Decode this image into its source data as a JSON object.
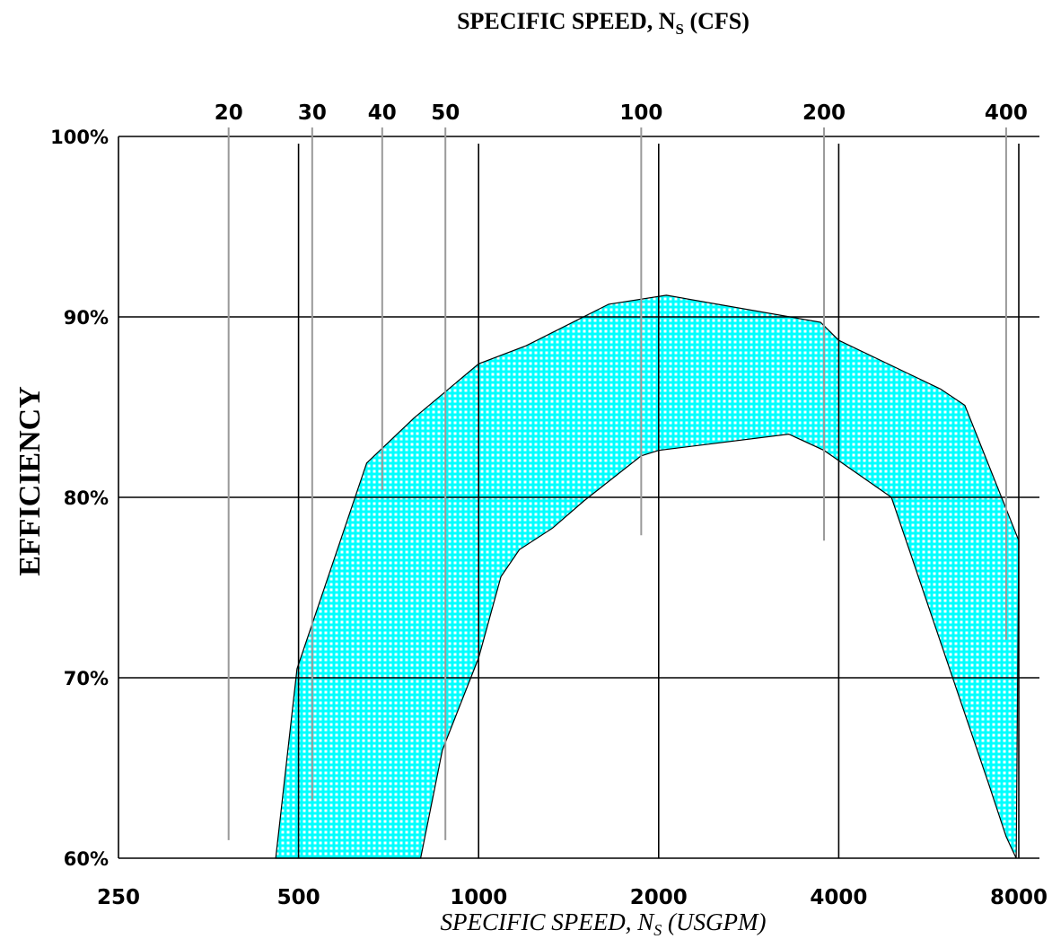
{
  "chart_data": {
    "type": "area",
    "title": "SPECIFIC SPEED, N_S (CFS)",
    "title_main": "SPECIFIC SPEED, N",
    "title_sub": "S",
    "title_suffix": " (CFS)",
    "xlabel": "SPECIFIC SPEED, N_S (USGPM)",
    "xlabel_main": "SPECIFIC SPEED, N",
    "xlabel_sub": "S",
    "xlabel_suffix": " (USGPM)",
    "ylabel": "EFFICIENCY",
    "x_scale": "log2",
    "xlim": [
      250,
      8000
    ],
    "ylim": [
      60,
      100
    ],
    "x_ticks": [
      {
        "value": 250,
        "label": "250"
      },
      {
        "value": 500,
        "label": "500"
      },
      {
        "value": 1000,
        "label": "1000"
      },
      {
        "value": 2000,
        "label": "2000"
      },
      {
        "value": 4000,
        "label": "4000"
      },
      {
        "value": 8000,
        "label": "8000"
      }
    ],
    "y_ticks": [
      {
        "value": 60,
        "label": "60%"
      },
      {
        "value": 70,
        "label": "70%"
      },
      {
        "value": 80,
        "label": "80%"
      },
      {
        "value": 90,
        "label": "90%"
      },
      {
        "value": 100,
        "label": "100%"
      }
    ],
    "top_axis": {
      "x_scale": "log2",
      "ticks": [
        {
          "label": "20",
          "usgpm": 382,
          "line_to_efficiency": 61
        },
        {
          "label": "30",
          "usgpm": 527,
          "line_to_efficiency": 63.2
        },
        {
          "label": "40",
          "usgpm": 690,
          "line_to_efficiency": 80.4
        },
        {
          "label": "50",
          "usgpm": 880,
          "line_to_efficiency": 61
        },
        {
          "label": "100",
          "usgpm": 1870,
          "line_to_efficiency": 77.9
        },
        {
          "label": "200",
          "usgpm": 3780,
          "line_to_efficiency": 77.6
        },
        {
          "label": "400",
          "usgpm": 7620,
          "line_to_efficiency": 72.1
        }
      ]
    },
    "grid": true,
    "fill_color": "#00ffff",
    "series": [
      {
        "role": "upper_bound",
        "points": [
          {
            "x": 458,
            "y": 60
          },
          {
            "x": 497,
            "y": 70.5
          },
          {
            "x": 650,
            "y": 81.9
          },
          {
            "x": 780,
            "y": 84.4
          },
          {
            "x": 1000,
            "y": 87.4
          },
          {
            "x": 1200,
            "y": 88.4
          },
          {
            "x": 1650,
            "y": 90.7
          },
          {
            "x": 2060,
            "y": 91.2
          },
          {
            "x": 3730,
            "y": 89.7
          },
          {
            "x": 4000,
            "y": 88.7
          },
          {
            "x": 5920,
            "y": 86
          },
          {
            "x": 6500,
            "y": 85.1
          },
          {
            "x": 8000,
            "y": 77.6
          }
        ]
      },
      {
        "role": "lower_bound",
        "points": [
          {
            "x": 800,
            "y": 60
          },
          {
            "x": 870,
            "y": 66
          },
          {
            "x": 1000,
            "y": 71.1
          },
          {
            "x": 1090,
            "y": 75.6
          },
          {
            "x": 1170,
            "y": 77.1
          },
          {
            "x": 1330,
            "y": 78.3
          },
          {
            "x": 1500,
            "y": 79.8
          },
          {
            "x": 1870,
            "y": 82.3
          },
          {
            "x": 2000,
            "y": 82.6
          },
          {
            "x": 3300,
            "y": 83.5
          },
          {
            "x": 3780,
            "y": 82.6
          },
          {
            "x": 4900,
            "y": 80
          },
          {
            "x": 7110,
            "y": 64.2
          },
          {
            "x": 7620,
            "y": 61.2
          },
          {
            "x": 7920,
            "y": 60
          }
        ]
      }
    ]
  }
}
